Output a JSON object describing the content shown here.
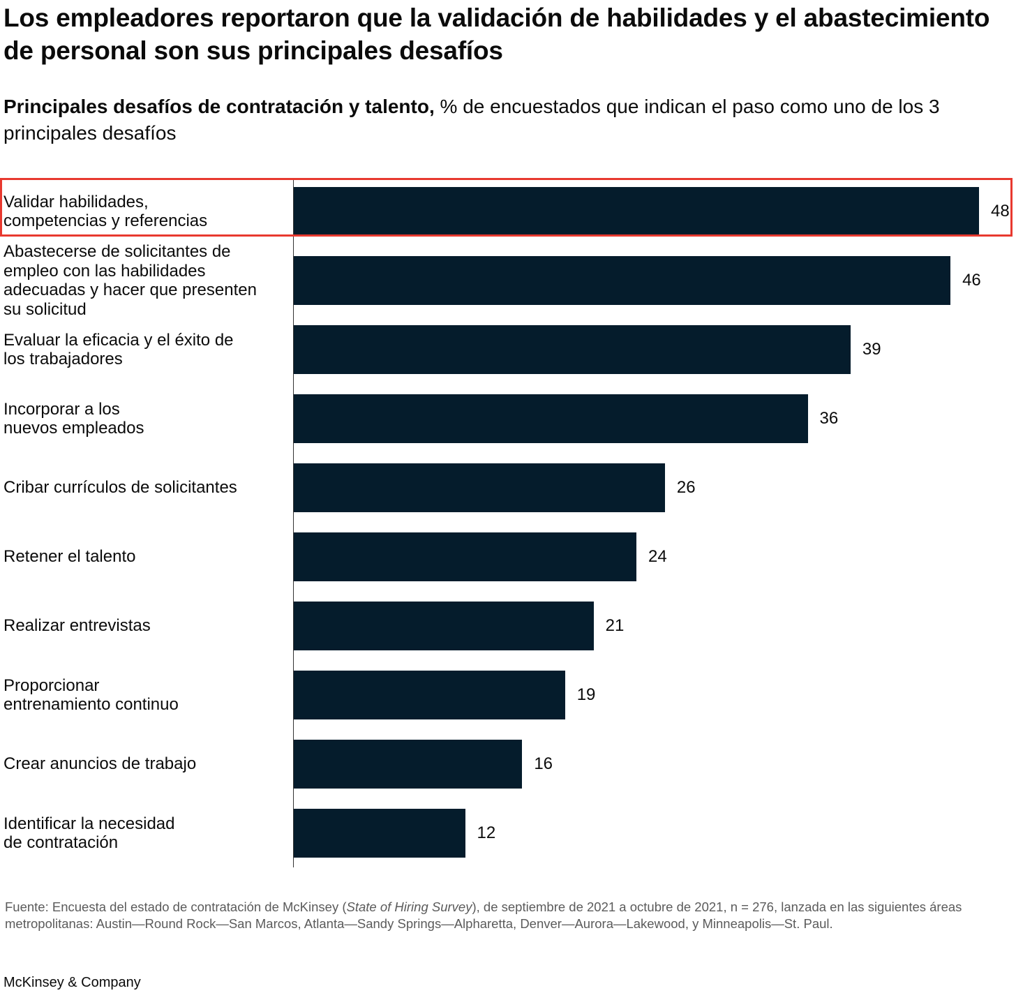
{
  "title": "Los empleadores reportaron que la validación de habilidades y el abastecimiento de personal son sus principales desafíos",
  "subtitle": {
    "bold": "Principales desafíos de contratación y talento,",
    "rest": " % de encuestados que indican el paso como uno de los 3 principales desafíos"
  },
  "chart_data": {
    "type": "bar",
    "orientation": "horizontal",
    "title": "Los empleadores reportaron que la validación de habilidades y el abastecimiento de personal son sus principales desafíos",
    "subtitle": "Principales desafíos de contratación y talento, % de encuestados que indican el paso como uno de los 3 principales desafíos",
    "categories": [
      "Validar habilidades,\ncompetencias y referencias",
      "Abastecerse de solicitantes de\nempleo con las habilidades\nadecuadas y hacer que presenten\nsu solicitud",
      "Evaluar la eficacia y el éxito de\nlos trabajadores",
      "Incorporar a los\nnuevos empleados",
      "Cribar currículos de solicitantes",
      "Retener el talento",
      "Realizar entrevistas",
      "Proporcionar\nentrenamiento continuo",
      "Crear anuncios de trabajo",
      "Identificar la necesidad\nde contratación"
    ],
    "values": [
      48,
      46,
      39,
      36,
      26,
      24,
      21,
      19,
      16,
      12
    ],
    "xlim": [
      0,
      48
    ],
    "grid": false,
    "highlighted_category_index": 0,
    "colors": {
      "bar": "#051c2c",
      "highlight": "#e8392f"
    }
  },
  "footnote": {
    "prefix": "Fuente: Encuesta del estado de contratación de McKinsey (",
    "italic": "State of Hiring Survey",
    "suffix": "), de septiembre de 2021 a octubre de 2021, n = 276, lanzada en las siguientes áreas metropolitanas: Austin—Round Rock—San Marcos, Atlanta—Sandy Springs—Alpharetta, Denver—Aurora—Lakewood, y Minneapolis—St. Paul."
  },
  "brand": "McKinsey & Company"
}
